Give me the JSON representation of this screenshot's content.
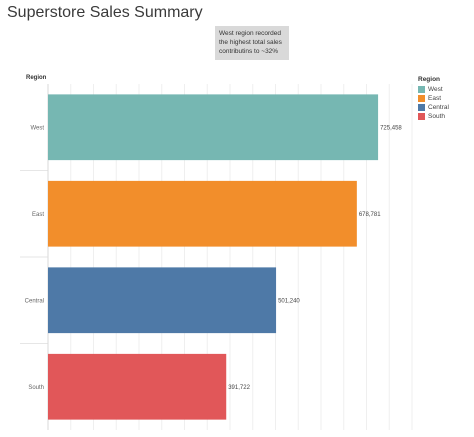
{
  "page": {
    "title": "Superstore Sales Summary",
    "annotation": "West region recorded the highest total sales contributins to ~32%"
  },
  "chart_data": {
    "type": "bar",
    "orientation": "horizontal",
    "row_header": "Region",
    "categories": [
      "West",
      "East",
      "Central",
      "South"
    ],
    "values": [
      725458,
      678781,
      501240,
      391722
    ],
    "value_labels": [
      "725,458",
      "678,781",
      "501,240",
      "391,722"
    ],
    "colors": [
      "#76b7b2",
      "#f28e2b",
      "#4e79a7",
      "#e15759"
    ],
    "xlim": [
      0,
      800000
    ],
    "grid": true,
    "legend": {
      "title": "Region",
      "position": "right",
      "items": [
        {
          "label": "West",
          "color": "#76b7b2"
        },
        {
          "label": "East",
          "color": "#f28e2b"
        },
        {
          "label": "Central",
          "color": "#4e79a7"
        },
        {
          "label": "South",
          "color": "#e15759"
        }
      ]
    }
  }
}
